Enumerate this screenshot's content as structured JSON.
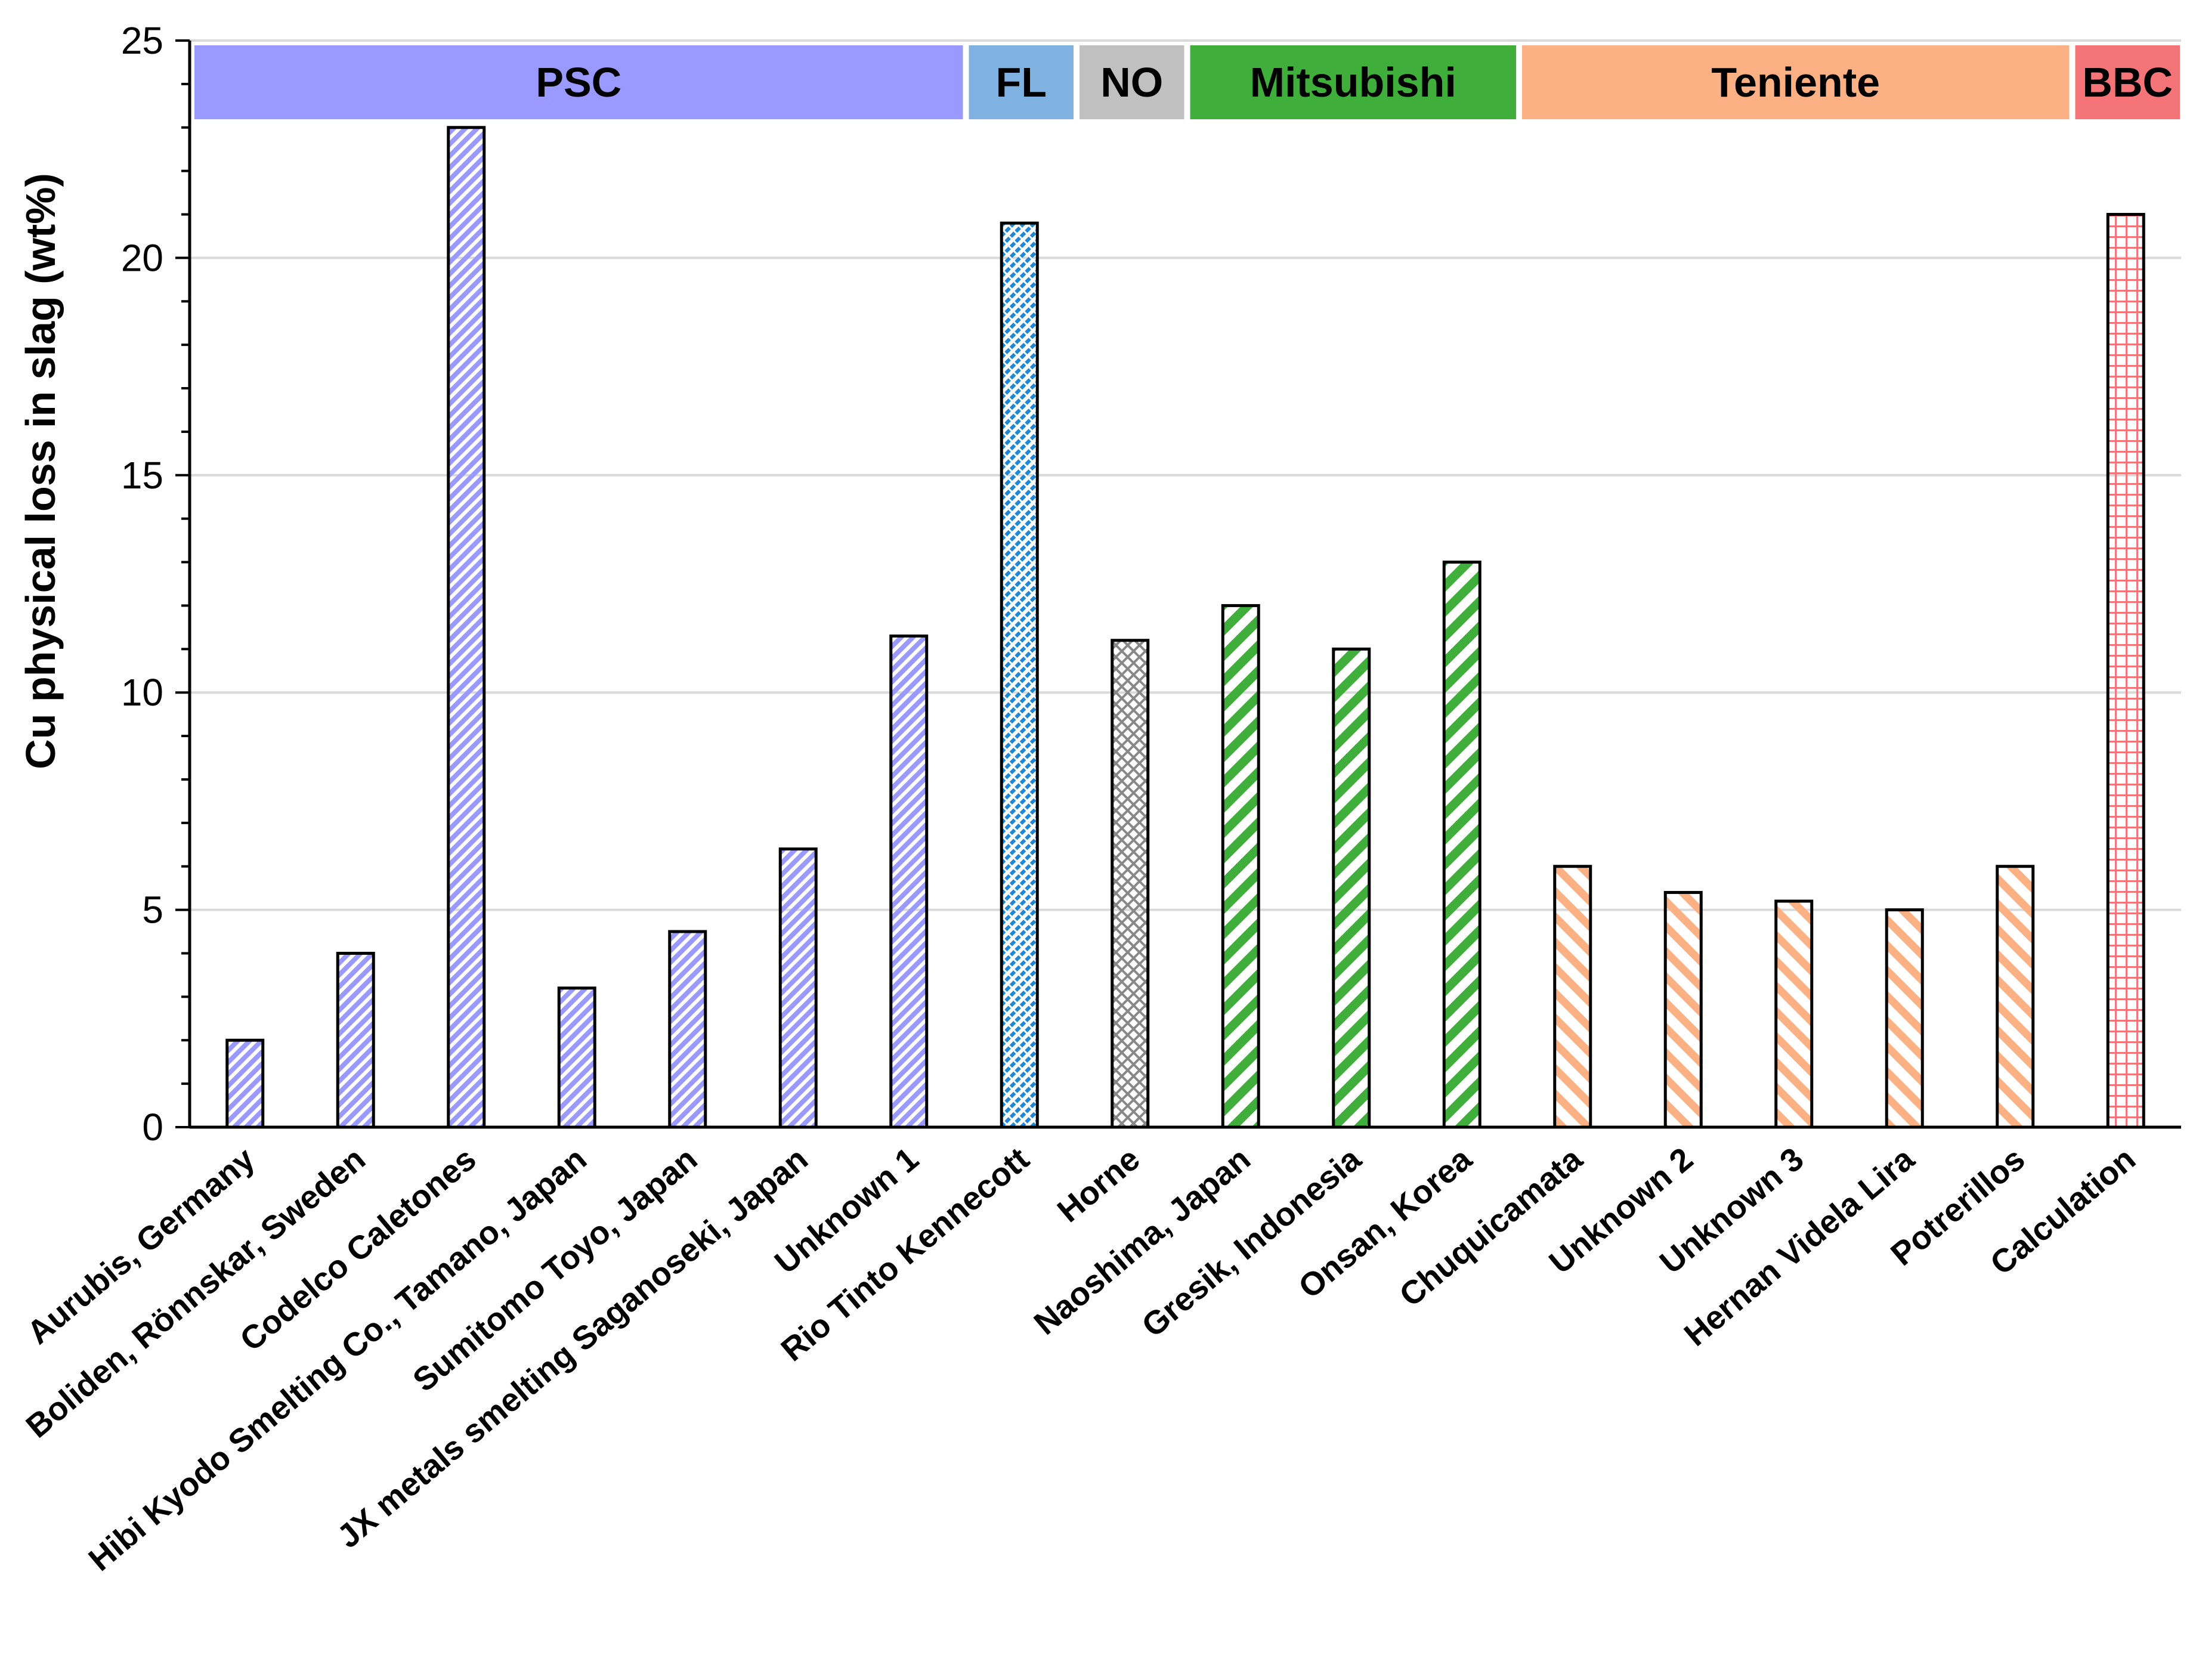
{
  "chart_data": {
    "type": "bar",
    "title": "",
    "xlabel": "",
    "ylabel": "Cu physical loss in slag (wt%)",
    "ylim": [
      0,
      25
    ],
    "yticks": [
      0,
      5,
      10,
      15,
      20,
      25
    ],
    "grid": true,
    "categories": [
      "Aurubis, Germany",
      "Boliden, Rönnskar, Sweden",
      "Codelco Caletones",
      "Hibi Kyodo Smelting Co., Tamano, Japan",
      "Sumitomo Toyo, Japan",
      "JX metals smelting Saganoseki, Japan",
      "Unknown 1",
      "Rio Tinto Kennecott",
      "Horne",
      "Naoshima, Japan",
      "Gresik, Indonesia",
      "Onsan, Korea",
      "Chuquicamata",
      "Unknown 2",
      "Unknown 3",
      "Hernan Videla Lira",
      "Potrerillos",
      "Calculation"
    ],
    "values": [
      2.0,
      4.0,
      23.0,
      3.2,
      4.5,
      6.4,
      11.3,
      20.8,
      11.2,
      12.0,
      11.0,
      13.0,
      6.0,
      5.4,
      5.2,
      5.0,
      6.0,
      21.0
    ],
    "groups": [
      {
        "name": "PSC",
        "start": 0,
        "end": 6,
        "color": "#9999ff"
      },
      {
        "name": "FL",
        "start": 7,
        "end": 7,
        "color": "#7fb2e0"
      },
      {
        "name": "NO",
        "start": 8,
        "end": 8,
        "color": "#c0c0c0"
      },
      {
        "name": "Mitsubishi",
        "start": 9,
        "end": 11,
        "color": "#3fae3a"
      },
      {
        "name": "Teniente",
        "start": 12,
        "end": 16,
        "color": "#fbb183"
      },
      {
        "name": "BBC",
        "start": 17,
        "end": 17,
        "color": "#f47478"
      }
    ],
    "bar_patterns": [
      "diag",
      "diag",
      "diag",
      "diag",
      "diag",
      "diag",
      "diag",
      "dots",
      "checker",
      "wide-diag",
      "wide-diag",
      "wide-diag",
      "back-diag",
      "back-diag",
      "back-diag",
      "back-diag",
      "back-diag",
      "grid"
    ],
    "bar_colors": [
      "#9999ff",
      "#9999ff",
      "#9999ff",
      "#9999ff",
      "#9999ff",
      "#9999ff",
      "#9999ff",
      "#1e88d6",
      "#888888",
      "#3fae3a",
      "#3fae3a",
      "#3fae3a",
      "#fbb183",
      "#fbb183",
      "#fbb183",
      "#fbb183",
      "#fbb183",
      "#f47478"
    ]
  }
}
